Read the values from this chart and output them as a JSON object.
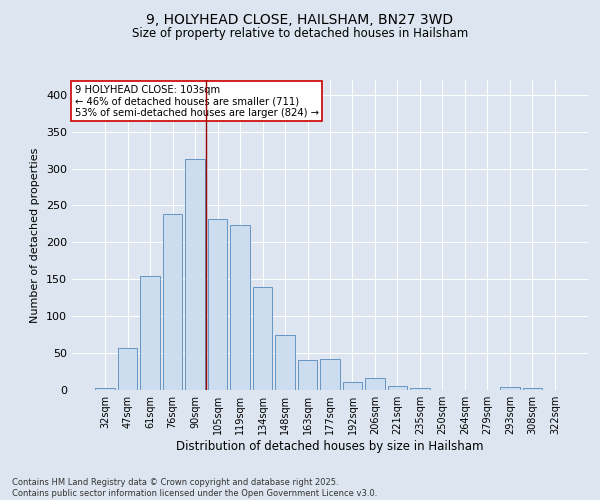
{
  "title1": "9, HOLYHEAD CLOSE, HAILSHAM, BN27 3WD",
  "title2": "Size of property relative to detached houses in Hailsham",
  "xlabel": "Distribution of detached houses by size in Hailsham",
  "ylabel": "Number of detached properties",
  "categories": [
    "32sqm",
    "47sqm",
    "61sqm",
    "76sqm",
    "90sqm",
    "105sqm",
    "119sqm",
    "134sqm",
    "148sqm",
    "163sqm",
    "177sqm",
    "192sqm",
    "206sqm",
    "221sqm",
    "235sqm",
    "250sqm",
    "264sqm",
    "279sqm",
    "293sqm",
    "308sqm",
    "322sqm"
  ],
  "values": [
    3,
    57,
    155,
    238,
    313,
    232,
    224,
    140,
    75,
    40,
    42,
    11,
    16,
    6,
    3,
    0,
    0,
    0,
    4,
    3,
    0
  ],
  "bar_color": "#ccddf0",
  "bar_edge_color": "#5588bb",
  "vline_x": 4.5,
  "vline_color": "#990000",
  "annotation_text": "9 HOLYHEAD CLOSE: 103sqm\n← 46% of detached houses are smaller (711)\n53% of semi-detached houses are larger (824) →",
  "annotation_box_color": "#ffffff",
  "annotation_box_edge": "#cc0000",
  "footnote": "Contains HM Land Registry data © Crown copyright and database right 2025.\nContains public sector information licensed under the Open Government Licence v3.0.",
  "bg_color": "#dde6f0",
  "plot_bg_color": "#dde6f0",
  "ylim": [
    0,
    420
  ],
  "yticks": [
    0,
    50,
    100,
    150,
    200,
    250,
    300,
    350,
    400
  ]
}
